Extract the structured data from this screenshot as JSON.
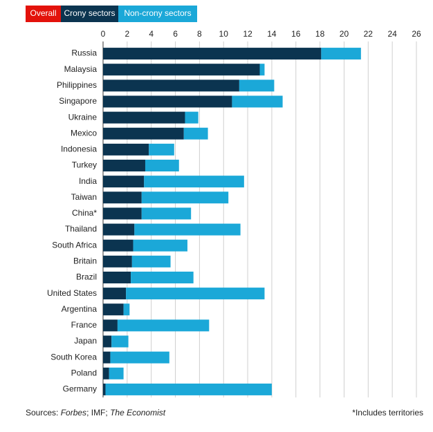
{
  "chart_data": {
    "type": "bar",
    "orientation": "horizontal",
    "stacked": true,
    "overall_tab": {
      "label": "Overall",
      "color": "#e3120b"
    },
    "categories": [
      "Russia",
      "Malaysia",
      "Philippines",
      "Singapore",
      "Ukraine",
      "Mexico",
      "Indonesia",
      "Turkey",
      "India",
      "Taiwan",
      "China*",
      "Thailand",
      "South Africa",
      "Britain",
      "Brazil",
      "United States",
      "Argentina",
      "France",
      "Japan",
      "South Korea",
      "Poland",
      "Germany"
    ],
    "series": [
      {
        "name": "Crony sectors",
        "color": "#0b3450",
        "values": [
          18.1,
          13.0,
          11.3,
          10.7,
          6.8,
          6.7,
          3.8,
          3.5,
          3.4,
          3.2,
          3.2,
          2.6,
          2.5,
          2.4,
          2.3,
          1.9,
          1.7,
          1.2,
          0.7,
          0.6,
          0.5,
          0.2
        ]
      },
      {
        "name": "Non-crony sectors",
        "color": "#1ba8d8",
        "values": [
          3.3,
          0.4,
          2.9,
          4.2,
          1.1,
          2.0,
          2.1,
          2.8,
          8.3,
          7.2,
          4.1,
          8.8,
          4.5,
          3.2,
          5.2,
          11.5,
          0.5,
          7.6,
          1.4,
          4.9,
          1.2,
          13.8
        ]
      }
    ],
    "xlim": [
      0,
      26
    ],
    "xticks": [
      0,
      2,
      4,
      6,
      8,
      10,
      12,
      14,
      16,
      18,
      20,
      22,
      24,
      26
    ],
    "grid": true,
    "source_parts": [
      "Sources: ",
      "Forbes",
      "; IMF; ",
      "The Economist"
    ],
    "note": "*Includes territories"
  }
}
